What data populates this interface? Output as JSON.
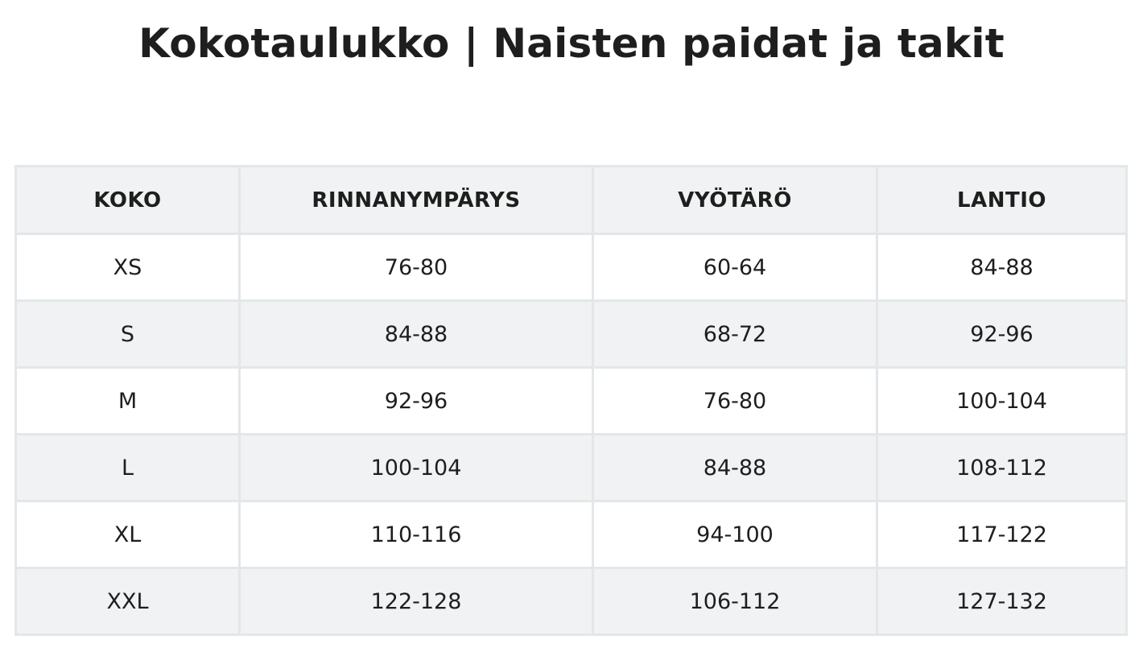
{
  "title": "Kokotaulukko | Naisten paidat ja takit",
  "table": {
    "headers": [
      "KOKO",
      "RINNANYMPÄRYS",
      "VYÖTÄRÖ",
      "LANTIO"
    ],
    "rows": [
      [
        "XS",
        "76-80",
        "60-64",
        "84-88"
      ],
      [
        "S",
        "84-88",
        "68-72",
        "92-96"
      ],
      [
        "M",
        "92-96",
        "76-80",
        "100-104"
      ],
      [
        "L",
        "100-104",
        "84-88",
        "108-112"
      ],
      [
        "XL",
        "110-116",
        "94-100",
        "117-122"
      ],
      [
        "XXL",
        "122-128",
        "106-112",
        "127-132"
      ]
    ]
  },
  "colors": {
    "header_background": "#f0f2f3",
    "stripe_background": "#f0f2f3",
    "border": "#e3e7ea",
    "text": "#1e1e1e"
  }
}
